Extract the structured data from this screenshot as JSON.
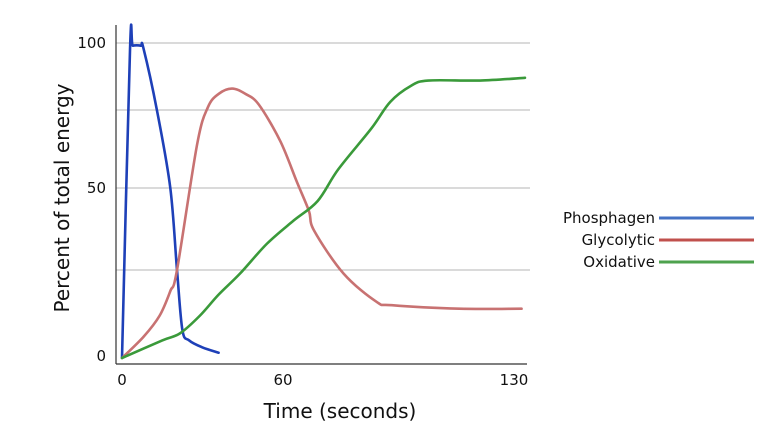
{
  "chart_data": {
    "type": "line",
    "title": "",
    "xlabel": "Time (seconds)",
    "ylabel": "Percent of total energy",
    "xlim": [
      0,
      130
    ],
    "ylim": [
      0,
      100
    ],
    "x_ticks": [
      "0",
      "60",
      "130"
    ],
    "x_tick_values": [
      0,
      60,
      130
    ],
    "y_ticks": [
      "0",
      "50",
      "100"
    ],
    "y_tick_values": [
      0,
      50,
      100
    ],
    "gridlines_y": [
      25,
      50,
      75,
      100
    ],
    "grid": true,
    "legend_position": "right",
    "series": [
      {
        "name": "Phosphagen",
        "color": "#1e40b8",
        "legend_color": "#4472c4",
        "points": [
          [
            0,
            0
          ],
          [
            3,
            98
          ],
          [
            4,
            99
          ],
          [
            7,
            99
          ],
          [
            8,
            98
          ],
          [
            13,
            75
          ],
          [
            18,
            50
          ],
          [
            20.5,
            25
          ],
          [
            22.5,
            8
          ],
          [
            25,
            5
          ],
          [
            30,
            3
          ],
          [
            36,
            1.5
          ]
        ]
      },
      {
        "name": "Glycolytic",
        "color": "#c87272",
        "legend_color": "#c0504d",
        "points": [
          [
            0,
            0
          ],
          [
            8,
            6
          ],
          [
            14,
            12
          ],
          [
            18,
            19
          ],
          [
            20.5,
            25
          ],
          [
            28,
            64
          ],
          [
            32,
            76
          ],
          [
            36,
            81
          ],
          [
            41,
            83
          ],
          [
            46,
            81
          ],
          [
            51,
            77
          ],
          [
            59,
            65
          ],
          [
            64,
            52
          ],
          [
            67.5,
            43
          ],
          [
            69,
            37
          ],
          [
            77.5,
            24
          ],
          [
            87,
            16
          ],
          [
            91.5,
            15
          ],
          [
            111,
            14
          ],
          [
            129,
            14
          ]
        ]
      },
      {
        "name": "Oxidative",
        "color": "#3a9a3a",
        "legend_color": "#4ea24e",
        "points": [
          [
            0,
            0
          ],
          [
            15,
            5
          ],
          [
            21.6,
            7
          ],
          [
            29,
            12
          ],
          [
            36,
            18
          ],
          [
            44,
            24
          ],
          [
            54,
            33
          ],
          [
            63,
            40
          ],
          [
            70,
            46
          ],
          [
            76,
            56
          ],
          [
            85.5,
            69
          ],
          [
            91,
            78
          ],
          [
            97,
            84
          ],
          [
            102,
            86
          ],
          [
            117,
            86
          ],
          [
            130,
            87
          ]
        ]
      }
    ]
  }
}
